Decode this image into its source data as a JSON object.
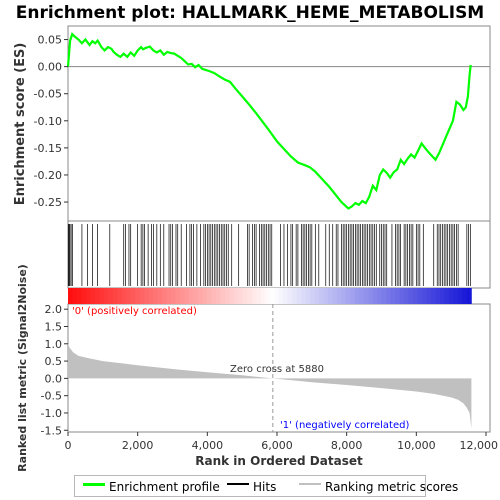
{
  "chart_data": {
    "type": "line",
    "title": "Enrichment plot: HALLMARK_HEME_METABOLISM",
    "panels": {
      "enrichment": {
        "ylabel": "Enrichment score (ES)",
        "ylim": [
          -0.285,
          0.075
        ],
        "yticks": [
          0.05,
          0.0,
          -0.05,
          -0.1,
          -0.15,
          -0.2,
          -0.25
        ],
        "ytick_labels": [
          "0.05",
          "0.00",
          "-0.05",
          "-0.10",
          "-0.15",
          "-0.20",
          "-0.25"
        ],
        "series": [
          {
            "name": "Enrichment profile",
            "color": "#00ff00",
            "x": [
              0,
              60,
              120,
              200,
              300,
              400,
              500,
              560,
              620,
              700,
              780,
              850,
              900,
              960,
              1050,
              1150,
              1250,
              1300,
              1400,
              1500,
              1600,
              1700,
              1800,
              1900,
              2000,
              2100,
              2150,
              2250,
              2350,
              2450,
              2550,
              2650,
              2750,
              2850,
              2950,
              3050,
              3150,
              3250,
              3350,
              3450,
              3550,
              3650,
              3750,
              3850,
              3950,
              4050,
              4200,
              4350,
              4500,
              4650,
              4800,
              5000,
              5200,
              5400,
              5600,
              5800,
              6000,
              6200,
              6400,
              6600,
              6800,
              6950,
              7100,
              7300,
              7500,
              7700,
              7850,
              7950,
              8050,
              8150,
              8250,
              8350,
              8450,
              8550,
              8650,
              8750,
              8850,
              8950,
              9050,
              9150,
              9250,
              9350,
              9450,
              9550,
              9650,
              9750,
              9850,
              9950,
              10050,
              10150,
              10250,
              10350,
              10450,
              10550,
              10650,
              10750,
              10850,
              10950,
              11050,
              11150,
              11250,
              11350,
              11420,
              11480,
              11530,
              11560
            ],
            "y": [
              0.0,
              0.048,
              0.06,
              0.055,
              0.05,
              0.043,
              0.05,
              0.045,
              0.04,
              0.047,
              0.043,
              0.048,
              0.043,
              0.036,
              0.03,
              0.036,
              0.033,
              0.028,
              0.022,
              0.018,
              0.024,
              0.018,
              0.026,
              0.02,
              0.03,
              0.036,
              0.032,
              0.035,
              0.037,
              0.03,
              0.026,
              0.03,
              0.022,
              0.027,
              0.025,
              0.024,
              0.02,
              0.016,
              0.01,
              0.004,
              0.005,
              -0.001,
              0.003,
              -0.004,
              -0.006,
              -0.008,
              -0.012,
              -0.018,
              -0.024,
              -0.028,
              -0.04,
              -0.055,
              -0.07,
              -0.086,
              -0.103,
              -0.12,
              -0.138,
              -0.152,
              -0.166,
              -0.177,
              -0.182,
              -0.186,
              -0.194,
              -0.208,
              -0.222,
              -0.238,
              -0.25,
              -0.256,
              -0.262,
              -0.258,
              -0.252,
              -0.255,
              -0.248,
              -0.252,
              -0.24,
              -0.22,
              -0.228,
              -0.2,
              -0.19,
              -0.196,
              -0.205,
              -0.195,
              -0.19,
              -0.172,
              -0.18,
              -0.17,
              -0.162,
              -0.168,
              -0.155,
              -0.142,
              -0.15,
              -0.158,
              -0.165,
              -0.172,
              -0.16,
              -0.145,
              -0.13,
              -0.115,
              -0.1,
              -0.065,
              -0.07,
              -0.08,
              -0.075,
              -0.055,
              -0.015,
              0.003
            ]
          }
        ],
        "baseline_y": 0.0
      },
      "hits": {
        "name": "Hits",
        "color": "#000000",
        "positions": [
          10,
          30,
          55,
          90,
          130,
          400,
          560,
          700,
          850,
          1200,
          1600,
          1650,
          1750,
          1800,
          2000,
          2100,
          2150,
          2200,
          2300,
          2400,
          2450,
          2550,
          2650,
          2750,
          2900,
          2950,
          3000,
          3100,
          3150,
          3250,
          3400,
          3500,
          3550,
          3600,
          3700,
          3800,
          3900,
          3950,
          4000,
          4050,
          4100,
          4150,
          4200,
          4250,
          4300,
          4350,
          4400,
          4450,
          4500,
          4550,
          4600,
          4700,
          4900,
          5150,
          5200,
          5300,
          5350,
          5400,
          5500,
          5550,
          5600,
          5650,
          5700,
          5750,
          5800,
          5850,
          6100,
          6200,
          6300,
          6400,
          6450,
          6550,
          6600,
          6700,
          6750,
          6800,
          6850,
          6900,
          6950,
          7000,
          7100,
          7200,
          7400,
          7500,
          7600,
          7700,
          7750,
          7850,
          7900,
          7950,
          8000,
          8050,
          8100,
          8150,
          8200,
          8250,
          8300,
          8350,
          8400,
          8450,
          8500,
          8550,
          8600,
          8650,
          8700,
          8750,
          8800,
          8850,
          8950,
          9000,
          9050,
          9100,
          9150,
          9300,
          9400,
          9450,
          9500,
          9550,
          9650,
          9700,
          9750,
          9800,
          9850,
          9900,
          10000,
          10050,
          10100,
          10200,
          10500,
          10600,
          10650,
          10700,
          10750,
          10800,
          10850,
          10900,
          10950,
          11000,
          11050,
          11100,
          11150,
          11200,
          11450,
          11500,
          11550
        ]
      },
      "ranked_metric": {
        "name": "Ranking metric scores",
        "color": "#c0c0c0",
        "ylabel": "Ranked list metric (Signal2Noise)",
        "ylim": [
          -1.55,
          2.15
        ],
        "yticks": [
          2.0,
          1.5,
          1.0,
          0.5,
          0.0,
          -0.5,
          -1.0,
          -1.5
        ],
        "ytick_labels": [
          "2.0",
          "1.5",
          "1.0",
          "0.5",
          "0.0",
          "-0.5",
          "-1.0",
          "-1.5"
        ],
        "x": [
          0,
          50,
          150,
          300,
          600,
          1000,
          2000,
          3000,
          4000,
          5000,
          5880,
          6500,
          7000,
          8000,
          9000,
          10000,
          10500,
          11000,
          11200,
          11350,
          11450,
          11530,
          11580
        ],
        "values": [
          1.0,
          0.88,
          0.75,
          0.65,
          0.58,
          0.5,
          0.38,
          0.27,
          0.18,
          0.09,
          0.0,
          -0.06,
          -0.11,
          -0.19,
          -0.28,
          -0.38,
          -0.45,
          -0.55,
          -0.62,
          -0.72,
          -0.85,
          -1.0,
          -1.45
        ],
        "zero_cross_label": "Zero cross at 5880",
        "zero_cross_x": 5880,
        "positive_label": "'0' (positively correlated)",
        "negative_label": "'1' (negatively correlated)",
        "positive_color": "#ff0000",
        "negative_color": "#0000ff"
      }
    },
    "x_axis": {
      "xlabel": "Rank in Ordered Dataset",
      "xlim": [
        0,
        12000
      ],
      "xticks": [
        0,
        2000,
        4000,
        6000,
        8000,
        10000,
        12000
      ],
      "xtick_labels": [
        "0",
        "2,000",
        "4,000",
        "6,000",
        "8,000",
        "10,000",
        "12,000"
      ],
      "n_ranked": 11580
    },
    "legend": {
      "placement": "bottom",
      "items": [
        {
          "label": "Enrichment profile",
          "color": "#00ff00"
        },
        {
          "label": "Hits",
          "color": "#000000"
        },
        {
          "label": "Ranking metric scores",
          "color": "#c0c0c0"
        }
      ]
    }
  }
}
